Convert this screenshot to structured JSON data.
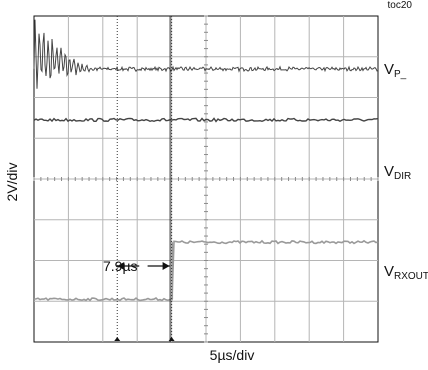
{
  "figure_id": "toc20",
  "traces": [
    {
      "name": "V",
      "sub": "P_",
      "type": "stepped burst then steady",
      "color": "#444444"
    },
    {
      "name": "V",
      "sub": "DIR",
      "type": "constant level",
      "color": "#444444"
    },
    {
      "name": "V",
      "sub": "RXOUT",
      "type": "low-to-high step",
      "color": "#9a9a9a"
    }
  ],
  "delay_annotation": "7.9µs",
  "chart_data": {
    "type": "line",
    "title": "",
    "xlabel": "5µs/div",
    "ylabel": "2V/div",
    "x_unit": "µs",
    "x_divisions": 10,
    "y_divisions": 8,
    "xlim": [
      0,
      50
    ],
    "ylim": [
      0,
      8
    ],
    "grid": true,
    "trigger_x": 20,
    "delay_us": 7.9,
    "series": [
      {
        "name": "VP_",
        "color": "#444444",
        "x": [
          0,
          1,
          2,
          3,
          4,
          5,
          6,
          7,
          8,
          9,
          10,
          50
        ],
        "y": [
          7.0,
          7.0,
          6.9,
          6.9,
          6.85,
          6.8,
          6.75,
          6.72,
          6.7,
          6.7,
          6.7,
          6.7
        ],
        "ringing_envelope_div": [
          1.5,
          1.4,
          1.25,
          1.0,
          0.75,
          0.5,
          0.3,
          0.15,
          0.08,
          0.05,
          0.04,
          0.04
        ]
      },
      {
        "name": "VDIR",
        "color": "#444444",
        "x": [
          0,
          50
        ],
        "y": [
          5.45,
          5.45
        ]
      },
      {
        "name": "VRXOUT",
        "color": "#9a9a9a",
        "x": [
          0,
          20.1,
          20.1,
          50
        ],
        "y": [
          1.05,
          1.05,
          2.45,
          2.45
        ]
      }
    ]
  }
}
